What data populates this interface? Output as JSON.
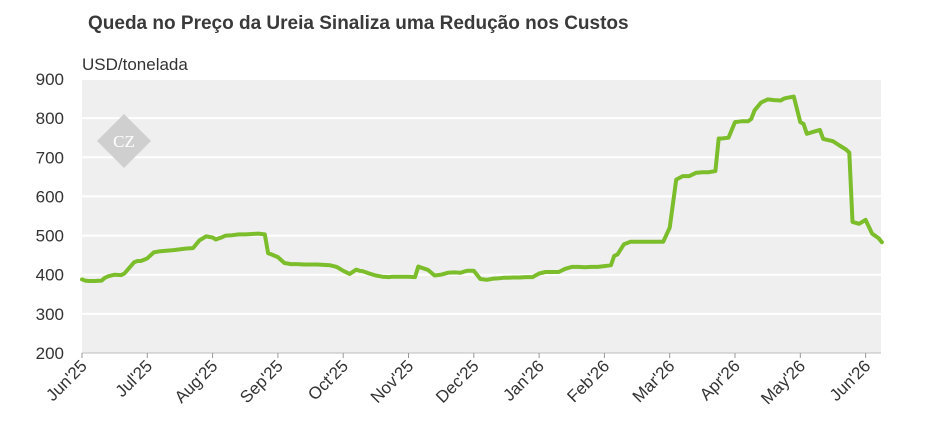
{
  "chart_data": {
    "type": "line",
    "title": "Queda no Preço da Ureia Sinaliza uma Redução nos Custos",
    "ylabel": "USD/tonelada",
    "xlabel": "",
    "ylim": [
      200,
      900
    ],
    "yticks": [
      200,
      300,
      400,
      500,
      600,
      700,
      800,
      900
    ],
    "xticks": [
      "Jun'25",
      "Jul'25",
      "Aug'25",
      "Sep'25",
      "Oct'25",
      "Nov'25",
      "Dec'25",
      "Jan'26",
      "Feb'26",
      "Mar'26",
      "Apr'26",
      "May'26",
      "Jun'26"
    ],
    "grid": true,
    "legend": "none",
    "series_color": "#7cbd2b",
    "plot_background": "#efefef",
    "logo_text": "CZ",
    "series": [
      {
        "x": [
          0,
          0.05,
          0.1,
          0.2,
          0.3,
          0.35,
          0.4,
          0.5,
          0.6,
          0.65,
          0.8,
          0.85,
          0.9,
          0.95,
          1.0,
          1.1,
          1.2,
          1.4,
          1.6,
          1.7,
          1.8,
          1.9,
          2.0,
          2.05,
          2.1,
          2.15,
          2.2,
          2.3,
          2.4,
          2.5,
          2.6,
          2.7,
          2.8,
          2.85,
          2.9,
          3.0,
          3.1,
          3.2,
          3.3,
          3.4,
          3.6,
          3.7,
          3.8,
          3.85,
          3.9,
          4.0,
          4.1,
          4.2,
          4.25,
          4.3,
          4.4,
          4.5,
          4.6,
          4.7,
          4.75,
          4.85,
          4.95,
          5.0,
          5.1,
          5.15,
          5.2,
          5.25,
          5.3,
          5.4,
          5.5,
          5.6,
          5.7,
          5.8,
          5.85,
          5.9,
          6.0,
          6.1,
          6.2,
          6.3,
          6.4,
          6.45,
          6.5,
          6.6,
          6.7,
          6.8,
          6.9,
          7.0,
          7.1,
          7.2,
          7.3,
          7.4,
          7.5,
          7.55,
          7.6,
          7.7,
          7.8,
          7.9,
          8.0,
          8.05,
          8.1,
          8.15,
          8.2,
          8.3,
          8.4,
          8.5,
          8.6,
          8.7,
          8.75,
          8.8,
          8.85,
          8.9,
          9.0,
          9.1,
          9.2,
          9.3,
          9.4,
          9.5,
          9.6,
          9.7,
          9.75,
          9.8,
          9.9,
          10.0,
          10.1,
          10.2,
          10.25,
          10.3,
          10.4,
          10.5,
          10.6,
          10.7,
          10.75,
          10.8,
          10.9,
          11.0,
          11.05,
          11.1,
          11.2,
          11.3,
          11.35,
          11.4,
          11.5,
          11.6,
          11.7,
          11.75,
          11.8,
          11.9,
          12.0,
          12.1,
          12.2,
          12.25
        ],
        "values": [
          388,
          385,
          384,
          384,
          385,
          392,
          396,
          400,
          399,
          403,
          432,
          435,
          435,
          438,
          442,
          457,
          460,
          463,
          467,
          468,
          488,
          498,
          495,
          490,
          493,
          496,
          500,
          501,
          503,
          503,
          504,
          505,
          503,
          455,
          452,
          445,
          430,
          427,
          427,
          426,
          426,
          425,
          424,
          422,
          420,
          410,
          402,
          413,
          410,
          409,
          403,
          398,
          395,
          394,
          395,
          395,
          395,
          395,
          394,
          421,
          418,
          415,
          412,
          398,
          400,
          405,
          406,
          405,
          408,
          410,
          410,
          389,
          387,
          390,
          391,
          392,
          392,
          393,
          393,
          394,
          394,
          403,
          407,
          407,
          407,
          415,
          420,
          420,
          420,
          419,
          420,
          420,
          422,
          423,
          424,
          448,
          452,
          478,
          484,
          484,
          484,
          484,
          484,
          484,
          484,
          484,
          520,
          643,
          652,
          652,
          660,
          662,
          662,
          665,
          748,
          748,
          750,
          790,
          792,
          792,
          798,
          820,
          840,
          848,
          846,
          845,
          850,
          852,
          855,
          790,
          785,
          760,
          765,
          770,
          747,
          745,
          741,
          730,
          720,
          712,
          535,
          530,
          540,
          505,
          493,
          483
        ]
      }
    ]
  }
}
